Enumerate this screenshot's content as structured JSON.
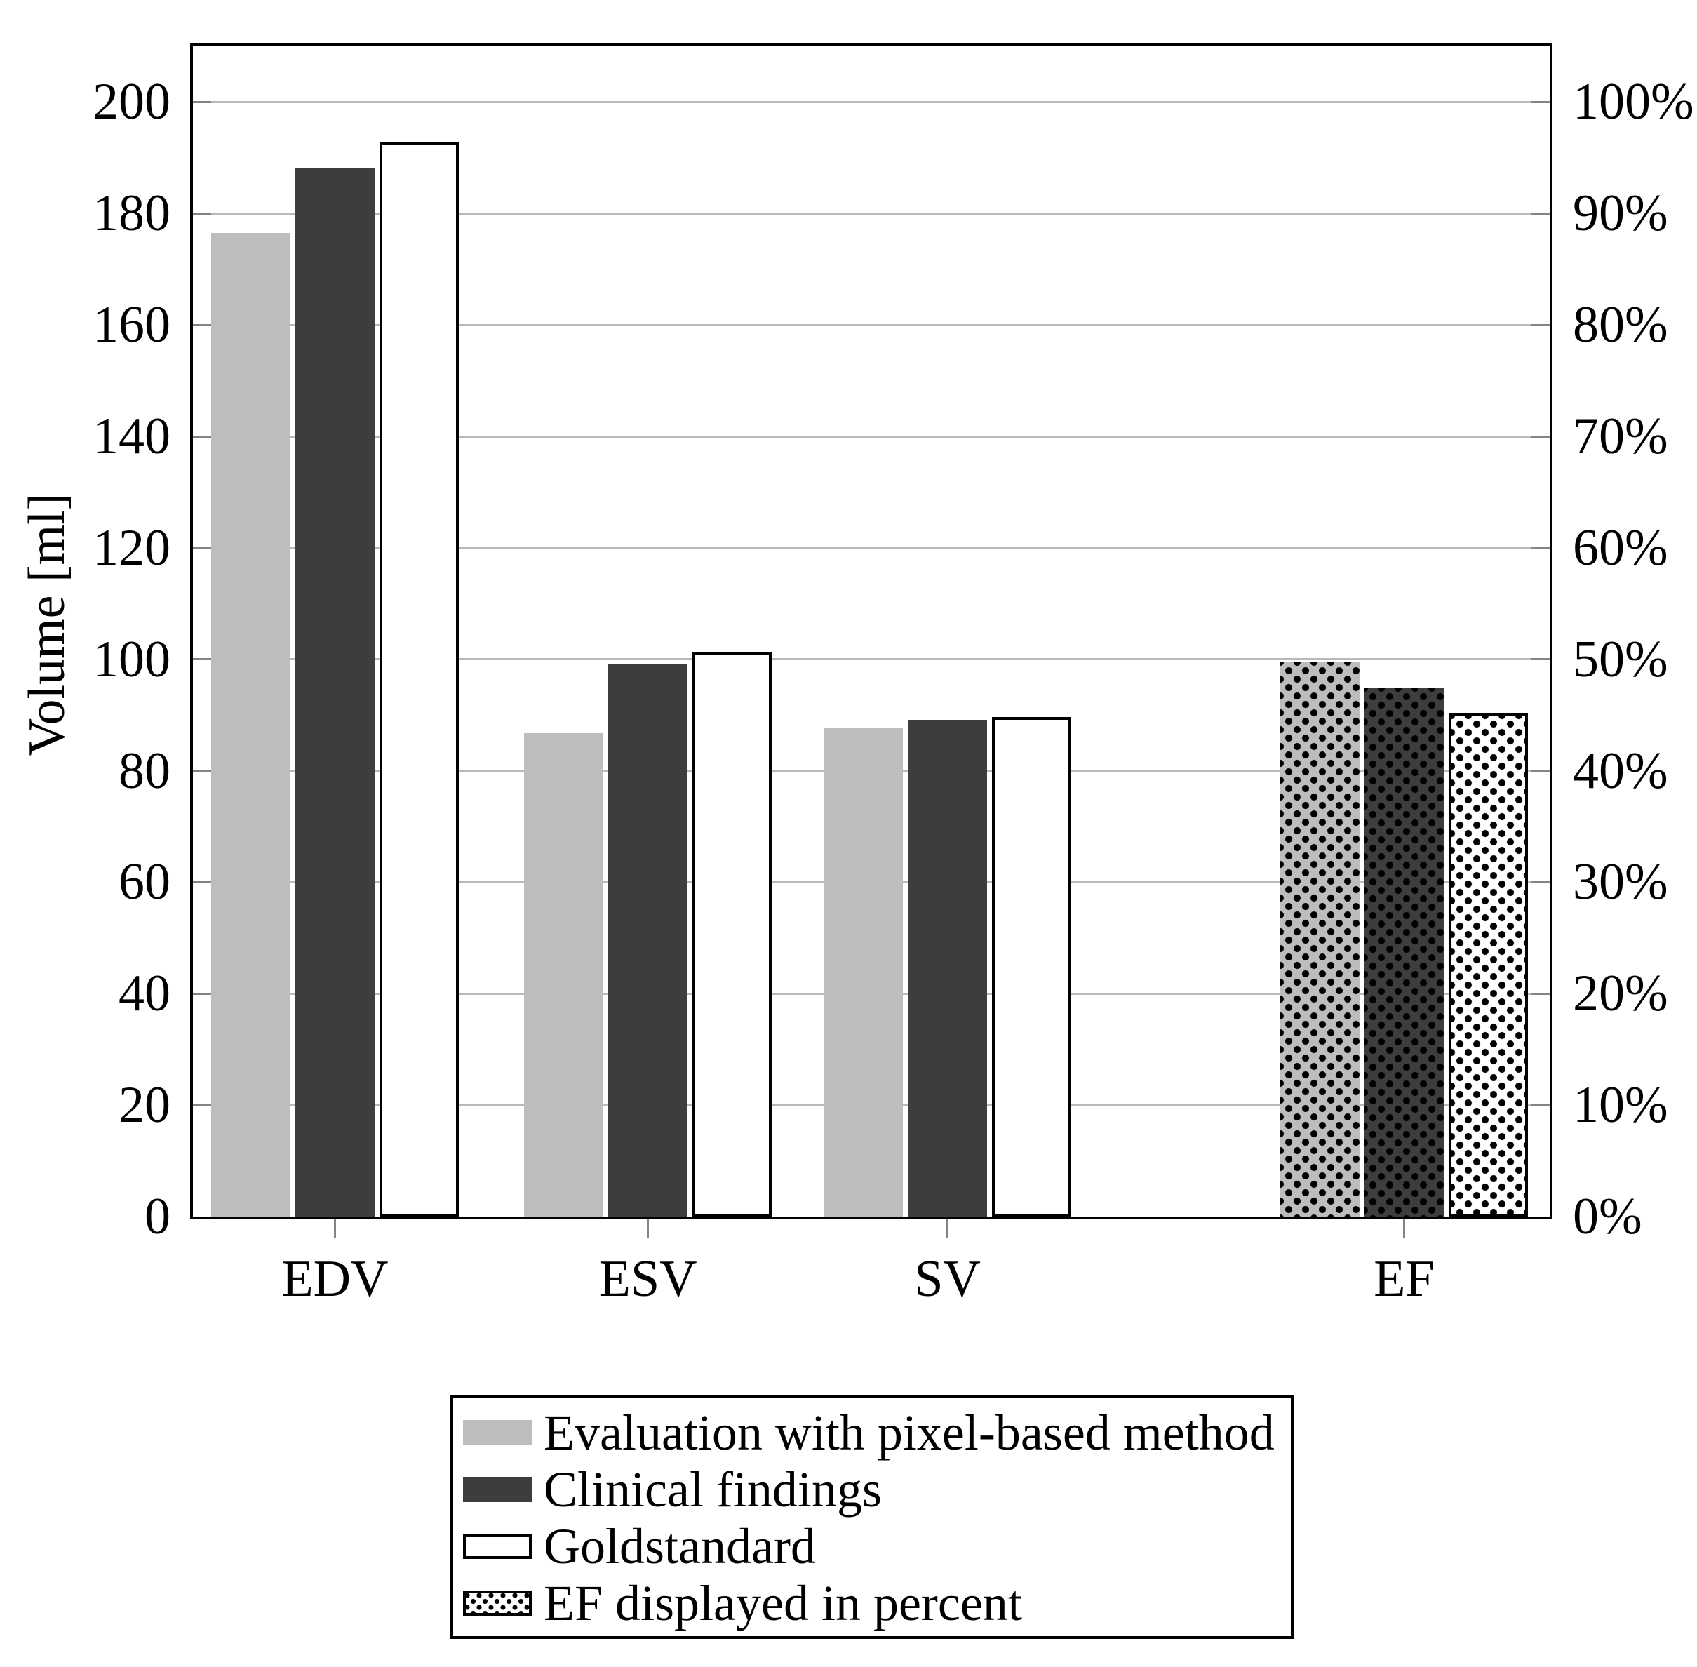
{
  "chart_data": {
    "type": "bar",
    "title": "",
    "ylabel": "Volume [ml]",
    "categories": [
      "EDV",
      "ESV",
      "SV",
      "EF"
    ],
    "series": [
      {
        "name": "Evaluation with pixel-based method",
        "fill": "#bdbdbd",
        "bordered": false,
        "values": [
          176.5,
          86.7,
          87.7,
          99.4
        ]
      },
      {
        "name": "Clinical findings",
        "fill": "#3d3d3d",
        "bordered": false,
        "values": [
          188.2,
          99.2,
          89.2,
          94.8
        ]
      },
      {
        "name": "Goldstandard",
        "fill": "#ffffff",
        "bordered": true,
        "values": [
          192.8,
          101.3,
          89.6,
          90.4
        ]
      }
    ],
    "dotted_category": "EF",
    "ef_percent_by_series": [
      "49.7%",
      "47.4%",
      "45.2%"
    ],
    "y_left": {
      "min": 0,
      "max": 210,
      "tick_step": 20,
      "ticks": [
        0,
        20,
        40,
        60,
        80,
        100,
        120,
        140,
        160,
        180,
        200
      ]
    },
    "y_right": {
      "tick_labels": [
        "0%",
        "10%",
        "20%",
        "30%",
        "40%",
        "50%",
        "60%",
        "70%",
        "80%",
        "90%",
        "100%"
      ]
    },
    "grid": true,
    "layout": {
      "group_centers_frac": [
        0.1047,
        0.3354,
        0.5562,
        0.8927
      ],
      "legend_position": "below-chart"
    }
  },
  "legend": {
    "items": [
      {
        "label": "Evaluation with pixel-based method",
        "swatch": "light-gray"
      },
      {
        "label": "Clinical findings",
        "swatch": "dark-gray"
      },
      {
        "label": "Goldstandard",
        "swatch": "white-bordered"
      },
      {
        "label": "EF displayed in percent",
        "swatch": "dotted"
      }
    ]
  },
  "colors": {
    "bar_light_gray": "#bdbdbd",
    "bar_dark_gray": "#3d3d3d",
    "bar_white": "#ffffff",
    "gridline": "#b9b9b9",
    "tick": "#848484",
    "axis_frame": "#000000"
  }
}
